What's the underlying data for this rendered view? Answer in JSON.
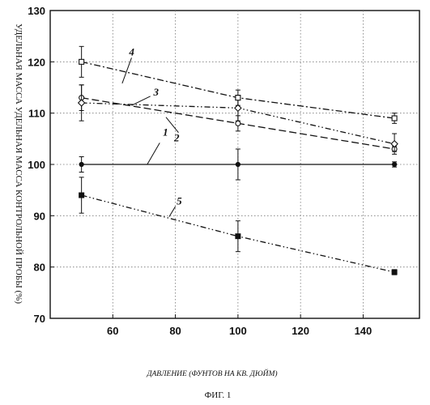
{
  "figure_caption": "ФИГ. 1",
  "chart_data": {
    "type": "line",
    "xlabel": "ДАВЛЕНИЕ (ФУНТОВ НА КВ. ДЮЙМ)",
    "ylabel": "УДЕЛЬНАЯ МАССА УДЕЛЬНАЯ МАССА КОНТРОЛЬНОЙ ПРОБЫ (%)",
    "xlim": [
      40,
      158
    ],
    "ylim": [
      70,
      130
    ],
    "xticks": [
      60,
      80,
      100,
      120,
      140
    ],
    "yticks": [
      70,
      80,
      90,
      100,
      110,
      120,
      130
    ],
    "grid": true,
    "series": [
      {
        "name": "1",
        "marker": "circle-filled",
        "dash": "solid",
        "x": [
          50,
          100,
          150
        ],
        "y": [
          100,
          100,
          100
        ],
        "err": [
          1.5,
          3,
          0.5
        ]
      },
      {
        "name": "2",
        "marker": "circle-open",
        "dash": "dashed",
        "x": [
          50,
          100,
          150
        ],
        "y": [
          113,
          108,
          103
        ],
        "err": [
          2.5,
          1.5,
          0.5
        ]
      },
      {
        "name": "3",
        "marker": "diamond-open",
        "dash": "dashdotdot",
        "x": [
          50,
          100,
          150
        ],
        "y": [
          112,
          111,
          104
        ],
        "err": [
          3.5,
          2.5,
          2
        ]
      },
      {
        "name": "4",
        "marker": "square-open",
        "dash": "dashdot",
        "x": [
          50,
          100,
          150
        ],
        "y": [
          120,
          113,
          109
        ],
        "err": [
          3,
          1.5,
          1
        ]
      },
      {
        "name": "5",
        "marker": "square-filled",
        "dash": "dashdotdot",
        "x": [
          50,
          100,
          150
        ],
        "y": [
          94,
          86,
          79
        ],
        "err": [
          3.5,
          3,
          0.5
        ]
      }
    ]
  }
}
